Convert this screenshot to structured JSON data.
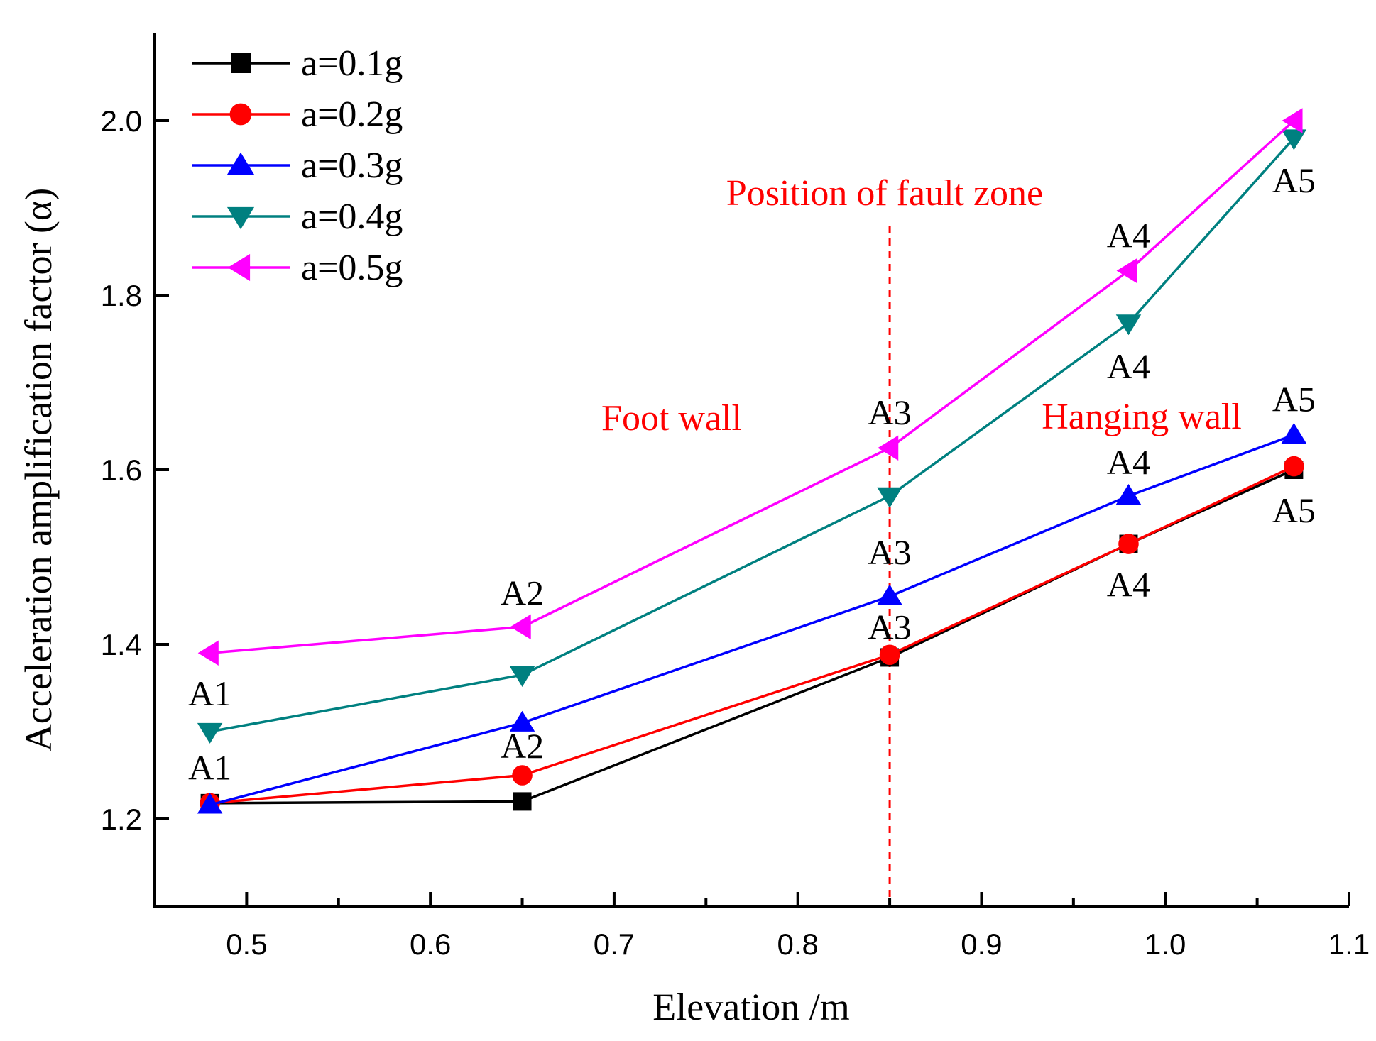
{
  "chart_data": {
    "type": "line",
    "title": "",
    "xlabel": "Elevation /m",
    "ylabel": "Acceleration amplification factor (α)",
    "xlim": [
      0.45,
      1.1
    ],
    "ylim": [
      1.1,
      2.1
    ],
    "x_ticks": [
      "0.5",
      "0.6",
      "0.7",
      "0.8",
      "0.9",
      "1.0",
      "1.1"
    ],
    "y_ticks": [
      "1.2",
      "1.4",
      "1.6",
      "1.8",
      "2.0"
    ],
    "grid": false,
    "legend_position": "top-left",
    "x": [
      0.48,
      0.65,
      0.85,
      0.98,
      1.07
    ],
    "series": [
      {
        "name": "a=0.1g",
        "color": "#000000",
        "marker": "square",
        "values": [
          1.218,
          1.22,
          1.385,
          1.515,
          1.6
        ]
      },
      {
        "name": "a=0.2g",
        "color": "#ff0000",
        "marker": "circle",
        "values": [
          1.218,
          1.25,
          1.388,
          1.515,
          1.604
        ]
      },
      {
        "name": "a=0.3g",
        "color": "#0000ff",
        "marker": "triangle-up",
        "values": [
          1.216,
          1.31,
          1.455,
          1.57,
          1.64
        ]
      },
      {
        "name": "a=0.4g",
        "color": "#008080",
        "marker": "triangle-down",
        "values": [
          1.3,
          1.365,
          1.57,
          1.768,
          1.98
        ]
      },
      {
        "name": "a=0.5g",
        "color": "#ff00ff",
        "marker": "triangle-left",
        "values": [
          1.39,
          1.42,
          1.625,
          1.828,
          2.0
        ]
      }
    ],
    "fault_line_x": 0.85,
    "annotations": [
      {
        "text": "Position of fault zone",
        "color": "#ff0000"
      },
      {
        "text": "Foot wall",
        "color": "#ff0000"
      },
      {
        "text": "Hanging wall",
        "color": "#ff0000"
      }
    ],
    "point_labels": [
      {
        "text": "A1",
        "x": 0.48,
        "y": 1.33
      },
      {
        "text": "A1",
        "x": 0.48,
        "y": 1.245
      },
      {
        "text": "A2",
        "x": 0.65,
        "y": 1.445
      },
      {
        "text": "A2",
        "x": 0.65,
        "y": 1.27
      },
      {
        "text": "A3",
        "x": 0.85,
        "y": 1.652
      },
      {
        "text": "A3",
        "x": 0.85,
        "y": 1.492
      },
      {
        "text": "A3",
        "x": 0.85,
        "y": 1.406
      },
      {
        "text": "A4",
        "x": 0.98,
        "y": 1.855
      },
      {
        "text": "A4",
        "x": 0.98,
        "y": 1.705
      },
      {
        "text": "A4",
        "x": 0.98,
        "y": 1.595
      },
      {
        "text": "A4",
        "x": 0.98,
        "y": 1.455
      },
      {
        "text": "A5",
        "x": 1.07,
        "y": 1.918
      },
      {
        "text": "A5",
        "x": 1.07,
        "y": 1.667
      },
      {
        "text": "A5",
        "x": 1.07,
        "y": 1.54
      }
    ]
  }
}
